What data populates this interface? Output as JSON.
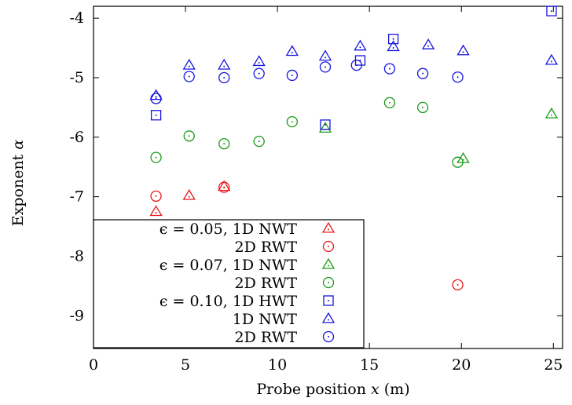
{
  "chart_data": {
    "type": "scatter",
    "xlabel": "Probe position x (m)",
    "ylabel": "Exponent α",
    "xlim": [
      0,
      25.5
    ],
    "ylim": [
      -9.55,
      -3.8
    ],
    "xticks": [
      0,
      5,
      10,
      15,
      20,
      25
    ],
    "yticks": [
      -4,
      -5,
      -6,
      -7,
      -8,
      -9
    ],
    "xtick_labels": [
      "0",
      "5",
      "10",
      "15",
      "20",
      "25"
    ],
    "ytick_labels": [
      "-4",
      "-5",
      "-6",
      "-7",
      "-8",
      "-9"
    ],
    "grid": false,
    "legend_position": "bottom-left",
    "series": [
      {
        "name": "ϵ = 0.05, 1D NWT",
        "color": "#e8181d",
        "marker": "triangle",
        "x": [
          3.4,
          5.2,
          7.1
        ],
        "y": [
          -7.25,
          -6.98,
          -6.83
        ]
      },
      {
        "name": "2D RWT",
        "color": "#e8181d",
        "marker": "circle",
        "x": [
          3.4,
          7.1,
          19.8
        ],
        "y": [
          -6.99,
          -6.84,
          -8.48
        ]
      },
      {
        "name": "ϵ = 0.07, 1D NWT",
        "color": "#1a9a1a",
        "marker": "triangle",
        "x": [
          12.6,
          20.1,
          24.9
        ],
        "y": [
          -5.85,
          -6.36,
          -5.61
        ]
      },
      {
        "name": "2D RWT",
        "color": "#1a9a1a",
        "marker": "circle",
        "x": [
          3.4,
          5.2,
          7.1,
          9.0,
          10.8,
          16.1,
          17.9,
          19.8
        ],
        "y": [
          -6.34,
          -5.98,
          -6.11,
          -6.07,
          -5.74,
          -5.42,
          -5.5,
          -6.42
        ]
      },
      {
        "name": "ϵ = 0.10, 1D HWT",
        "color": "#1515e0",
        "marker": "square",
        "x": [
          3.4,
          12.6,
          14.5,
          16.3,
          24.9
        ],
        "y": [
          -5.63,
          -5.79,
          -4.71,
          -4.35,
          -3.88
        ]
      },
      {
        "name": "1D NWT",
        "color": "#1515e0",
        "marker": "triangle",
        "x": [
          3.4,
          5.2,
          7.1,
          9.0,
          10.8,
          12.6,
          14.5,
          16.3,
          18.2,
          20.1,
          24.9
        ],
        "y": [
          -5.3,
          -4.79,
          -4.79,
          -4.73,
          -4.56,
          -4.64,
          -4.47,
          -4.48,
          -4.45,
          -4.55,
          -4.71
        ]
      },
      {
        "name": "2D RWT",
        "color": "#1515e0",
        "marker": "circle",
        "x": [
          3.4,
          5.2,
          7.1,
          9.0,
          10.8,
          12.6,
          14.3,
          16.1,
          17.9,
          19.8
        ],
        "y": [
          -5.35,
          -4.98,
          -5.0,
          -4.93,
          -4.96,
          -4.82,
          -4.79,
          -4.85,
          -4.93,
          -4.99
        ]
      }
    ],
    "legend": {
      "groups": [
        {
          "prefix": "ϵ = 0.05,",
          "first_label": "1D NWT",
          "second_label": "2D RWT"
        },
        {
          "prefix": "ϵ = 0.07,",
          "first_label": "1D NWT",
          "second_label": "2D RWT"
        },
        {
          "prefix": "ϵ = 0.10,",
          "first_label": "1D HWT",
          "second_label": "1D NWT",
          "third_label": "2D RWT"
        }
      ]
    }
  }
}
